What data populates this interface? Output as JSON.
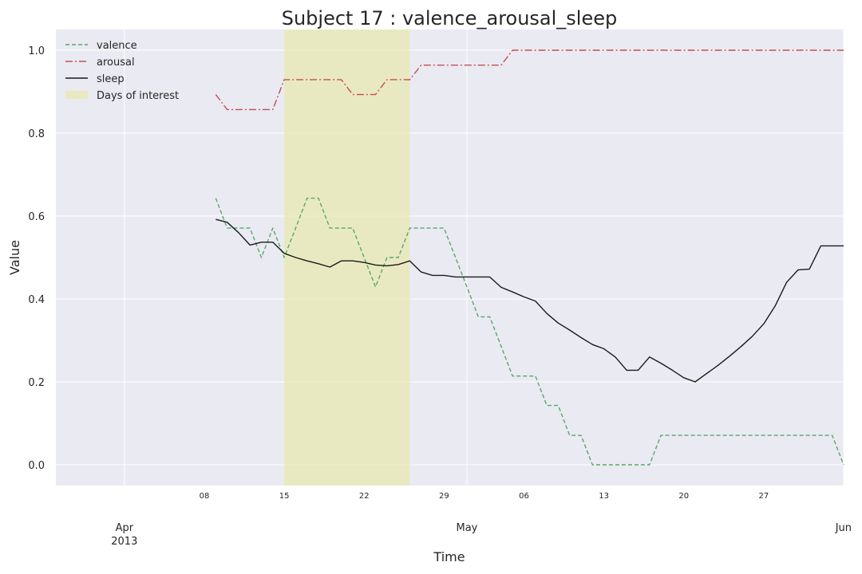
{
  "chart_data": {
    "type": "line",
    "title": "Subject 17 : valence_arousal_sleep",
    "xlabel": "Time",
    "ylabel": "Value",
    "xlim": [
      "2013-03-26",
      "2013-06-03"
    ],
    "ylim": [
      -0.05,
      1.05
    ],
    "y_ticks": [
      "0.0",
      "0.2",
      "0.4",
      "0.6",
      "0.8",
      "1.0"
    ],
    "x_major_ticks": [
      {
        "date": "2013-04-01",
        "label": "Apr",
        "sublabel": "2013"
      },
      {
        "date": "2013-05-01",
        "label": "May",
        "sublabel": ""
      },
      {
        "date": "2013-06-03",
        "label": "Jun",
        "sublabel": ""
      }
    ],
    "x_minor_ticks": [
      {
        "date": "2013-04-08",
        "label": "08"
      },
      {
        "date": "2013-04-15",
        "label": "15"
      },
      {
        "date": "2013-04-22",
        "label": "22"
      },
      {
        "date": "2013-04-29",
        "label": "29"
      },
      {
        "date": "2013-05-06",
        "label": "06"
      },
      {
        "date": "2013-05-13",
        "label": "13"
      },
      {
        "date": "2013-05-20",
        "label": "20"
      },
      {
        "date": "2013-05-27",
        "label": "27"
      }
    ],
    "grid": true,
    "legend_position": "top-left",
    "background": "#eaeaf2",
    "highlight": {
      "label": "Days of interest",
      "start": "2013-04-15",
      "end": "2013-04-26",
      "color": "#e8e8b0"
    },
    "series": [
      {
        "name": "valence",
        "color": "#55a868",
        "dash": "dashed",
        "x": [
          "2013-04-09",
          "2013-04-10",
          "2013-04-11",
          "2013-04-12",
          "2013-04-13",
          "2013-04-14",
          "2013-04-15",
          "2013-04-16",
          "2013-04-17",
          "2013-04-18",
          "2013-04-19",
          "2013-04-20",
          "2013-04-21",
          "2013-04-22",
          "2013-04-23",
          "2013-04-24",
          "2013-04-25",
          "2013-04-26",
          "2013-04-27",
          "2013-04-28",
          "2013-04-29",
          "2013-04-30",
          "2013-05-01",
          "2013-05-02",
          "2013-05-03",
          "2013-05-04",
          "2013-05-05",
          "2013-05-06",
          "2013-05-07",
          "2013-05-08",
          "2013-05-09",
          "2013-05-10",
          "2013-05-11",
          "2013-05-12",
          "2013-05-13",
          "2013-05-14",
          "2013-05-15",
          "2013-05-16",
          "2013-05-17",
          "2013-05-18",
          "2013-05-19",
          "2013-05-20",
          "2013-05-21",
          "2013-05-22",
          "2013-05-23",
          "2013-05-24",
          "2013-05-25",
          "2013-05-26",
          "2013-05-27",
          "2013-05-28",
          "2013-05-29",
          "2013-05-30",
          "2013-05-31",
          "2013-06-01",
          "2013-06-02",
          "2013-06-03"
        ],
        "values": [
          0.643,
          0.571,
          0.571,
          0.571,
          0.5,
          0.571,
          0.5,
          0.571,
          0.643,
          0.643,
          0.571,
          0.571,
          0.571,
          0.5,
          0.429,
          0.5,
          0.5,
          0.571,
          0.571,
          0.571,
          0.571,
          0.5,
          0.429,
          0.357,
          0.357,
          0.286,
          0.214,
          0.214,
          0.214,
          0.143,
          0.143,
          0.071,
          0.071,
          0.0,
          0.0,
          0.0,
          0.0,
          0.0,
          0.0,
          0.071,
          0.071,
          0.071,
          0.071,
          0.071,
          0.071,
          0.071,
          0.071,
          0.071,
          0.071,
          0.071,
          0.071,
          0.071,
          0.071,
          0.071,
          0.071,
          0.0
        ]
      },
      {
        "name": "arousal",
        "color": "#c44e52",
        "dash": "dashdot",
        "x": [
          "2013-04-09",
          "2013-04-10",
          "2013-04-11",
          "2013-04-12",
          "2013-04-13",
          "2013-04-14",
          "2013-04-15",
          "2013-04-16",
          "2013-04-17",
          "2013-04-18",
          "2013-04-19",
          "2013-04-20",
          "2013-04-21",
          "2013-04-22",
          "2013-04-23",
          "2013-04-24",
          "2013-04-25",
          "2013-04-26",
          "2013-04-27",
          "2013-04-28",
          "2013-04-29",
          "2013-04-30",
          "2013-05-01",
          "2013-05-02",
          "2013-05-03",
          "2013-05-04",
          "2013-05-05",
          "2013-05-06",
          "2013-05-07",
          "2013-05-08",
          "2013-05-09",
          "2013-05-10",
          "2013-05-11",
          "2013-05-12",
          "2013-05-13",
          "2013-05-14",
          "2013-05-15",
          "2013-05-16",
          "2013-05-17",
          "2013-05-18",
          "2013-05-19",
          "2013-05-20",
          "2013-05-21",
          "2013-05-22",
          "2013-05-23",
          "2013-05-24",
          "2013-05-25",
          "2013-05-26",
          "2013-05-27",
          "2013-05-28",
          "2013-05-29",
          "2013-05-30",
          "2013-05-31",
          "2013-06-01",
          "2013-06-02",
          "2013-06-03"
        ],
        "values": [
          0.893,
          0.857,
          0.857,
          0.857,
          0.857,
          0.857,
          0.929,
          0.929,
          0.929,
          0.929,
          0.929,
          0.929,
          0.893,
          0.893,
          0.893,
          0.929,
          0.929,
          0.929,
          0.964,
          0.964,
          0.964,
          0.964,
          0.964,
          0.964,
          0.964,
          0.964,
          1.0,
          1.0,
          1.0,
          1.0,
          1.0,
          1.0,
          1.0,
          1.0,
          1.0,
          1.0,
          1.0,
          1.0,
          1.0,
          1.0,
          1.0,
          1.0,
          1.0,
          1.0,
          1.0,
          1.0,
          1.0,
          1.0,
          1.0,
          1.0,
          1.0,
          1.0,
          1.0,
          1.0,
          1.0,
          1.0
        ]
      },
      {
        "name": "sleep",
        "color": "#1a1a1a",
        "dash": "solid",
        "x": [
          "2013-04-09",
          "2013-04-10",
          "2013-04-11",
          "2013-04-12",
          "2013-04-13",
          "2013-04-14",
          "2013-04-15",
          "2013-04-16",
          "2013-04-17",
          "2013-04-18",
          "2013-04-19",
          "2013-04-20",
          "2013-04-21",
          "2013-04-22",
          "2013-04-23",
          "2013-04-24",
          "2013-04-25",
          "2013-04-26",
          "2013-04-27",
          "2013-04-28",
          "2013-04-29",
          "2013-04-30",
          "2013-05-01",
          "2013-05-02",
          "2013-05-03",
          "2013-05-04",
          "2013-05-05",
          "2013-05-06",
          "2013-05-07",
          "2013-05-08",
          "2013-05-09",
          "2013-05-10",
          "2013-05-11",
          "2013-05-12",
          "2013-05-13",
          "2013-05-14",
          "2013-05-15",
          "2013-05-16",
          "2013-05-17",
          "2013-05-18",
          "2013-05-19",
          "2013-05-20",
          "2013-05-21",
          "2013-05-22",
          "2013-05-23",
          "2013-05-24",
          "2013-05-25",
          "2013-05-26",
          "2013-05-27",
          "2013-05-28",
          "2013-05-29",
          "2013-05-30",
          "2013-05-31",
          "2013-06-01",
          "2013-06-02",
          "2013-06-03"
        ],
        "values": [
          0.592,
          0.585,
          0.56,
          0.53,
          0.537,
          0.537,
          0.51,
          0.5,
          0.492,
          0.485,
          0.477,
          0.492,
          0.492,
          0.488,
          0.482,
          0.48,
          0.483,
          0.492,
          0.465,
          0.457,
          0.457,
          0.453,
          0.453,
          0.453,
          0.453,
          0.428,
          0.417,
          0.405,
          0.395,
          0.365,
          0.342,
          0.325,
          0.307,
          0.29,
          0.28,
          0.26,
          0.228,
          0.228,
          0.26,
          0.245,
          0.228,
          0.21,
          0.2,
          0.22,
          0.24,
          0.262,
          0.285,
          0.31,
          0.34,
          0.383,
          0.44,
          0.47,
          0.472,
          0.528,
          0.528,
          0.528
        ]
      }
    ]
  }
}
